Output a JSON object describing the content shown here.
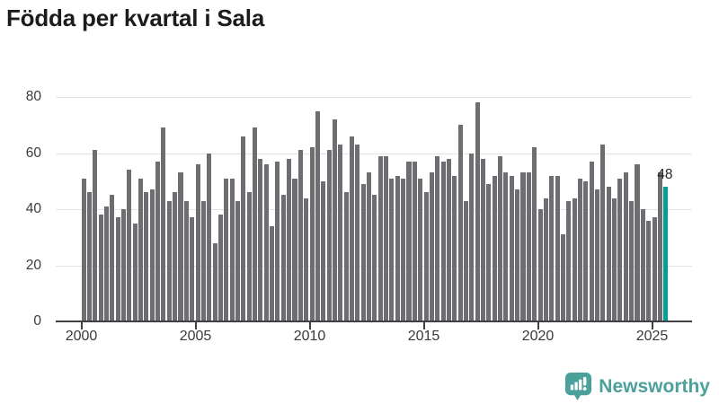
{
  "title": "Födda per kvartal i Sala",
  "annotation": {
    "value_label": "48"
  },
  "branding": {
    "name": "Newsworthy",
    "icon": "bar-chart-speech-bubble-icon"
  },
  "colors": {
    "bar": "#6d6d72",
    "highlight": "#00a09a",
    "axis": "#3f3f44",
    "gridline": "#e2e2e2",
    "tick_label": "#3a3a3a",
    "title": "#1c1c1c",
    "brand": "#4aa09a"
  },
  "chart_data": {
    "type": "bar",
    "title": "Födda per kvartal i Sala",
    "xlabel": "",
    "ylabel": "",
    "x_unit": "quarter",
    "start_quarter": "2000-Q1",
    "end_quarter": "2025-Q3",
    "x_tick_labels": [
      "2000",
      "2005",
      "2010",
      "2015",
      "2020",
      "2025"
    ],
    "y_ticks": [
      0,
      20,
      40,
      60,
      80
    ],
    "ylim": [
      0,
      84
    ],
    "grid": "horizontal",
    "legend": "none",
    "values": [
      51,
      46,
      61,
      38,
      41,
      45,
      37,
      40,
      54,
      35,
      51,
      46,
      47,
      57,
      69,
      43,
      46,
      53,
      43,
      37,
      56,
      43,
      60,
      28,
      38,
      51,
      51,
      43,
      66,
      46,
      69,
      58,
      56,
      34,
      57,
      45,
      58,
      51,
      61,
      44,
      62,
      75,
      50,
      61,
      72,
      63,
      46,
      66,
      63,
      49,
      53,
      45,
      59,
      59,
      51,
      52,
      51,
      57,
      57,
      51,
      46,
      53,
      59,
      57,
      58,
      52,
      70,
      43,
      60,
      78,
      58,
      49,
      52,
      59,
      53,
      52,
      47,
      53,
      53,
      62,
      40,
      44,
      52,
      52,
      31,
      43,
      44,
      51,
      50,
      57,
      47,
      63,
      48,
      44,
      51,
      53,
      43,
      56,
      40,
      36,
      37,
      53,
      48
    ],
    "highlight_last_bar": true,
    "highlighted_value": 48
  }
}
